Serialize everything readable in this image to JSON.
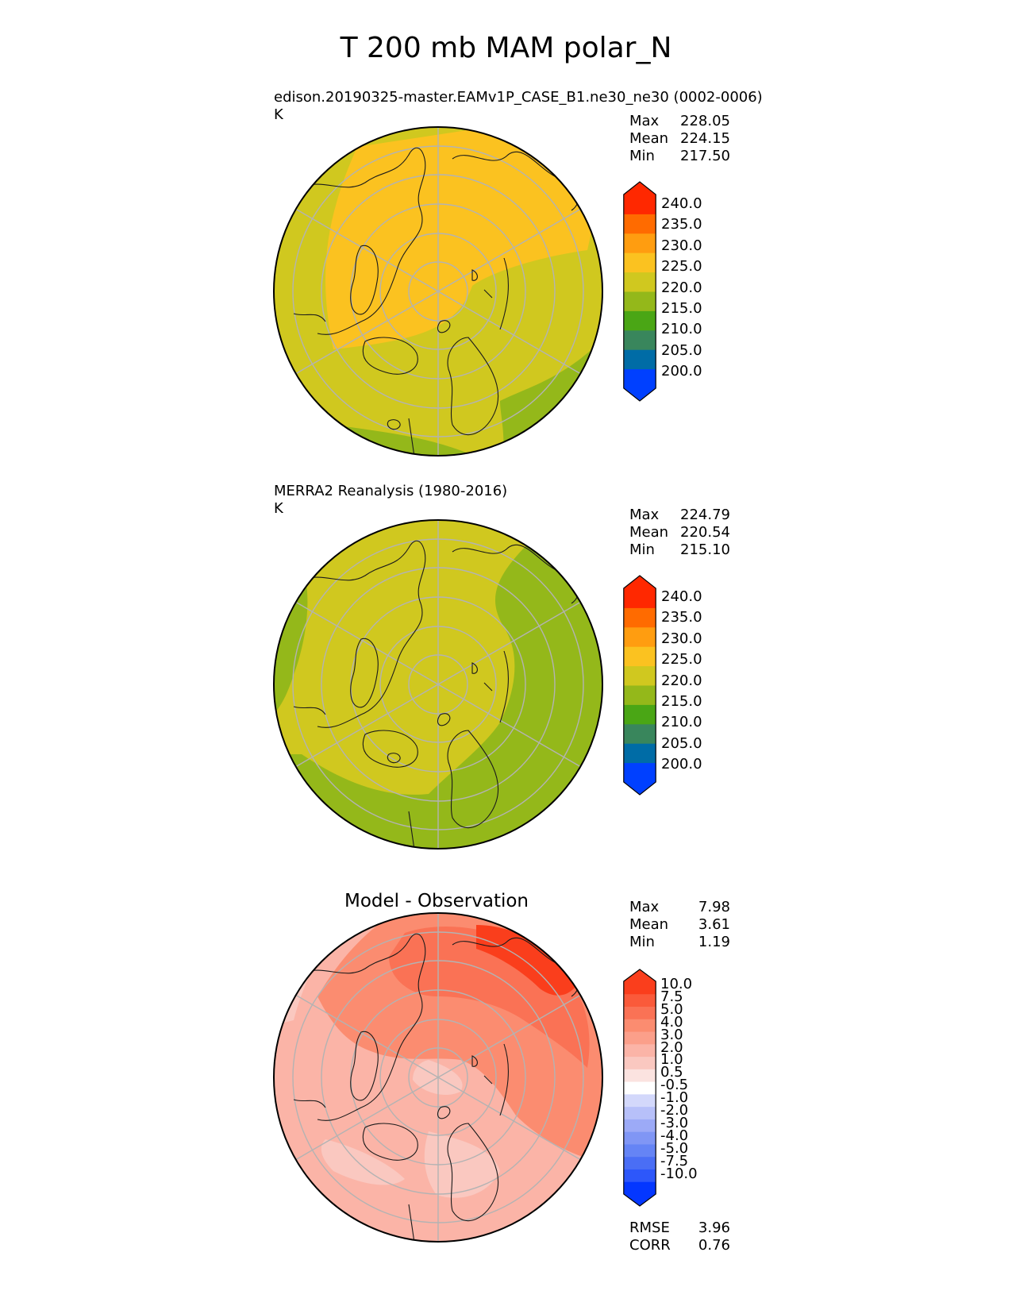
{
  "title": "T 200 mb MAM polar_N",
  "colors": {
    "abs_bins": [
      "#0040ff",
      "#006ca6",
      "#39865c",
      "#4aa615",
      "#94b81a",
      "#d0c81f",
      "#fbc220",
      "#ff9d10",
      "#ff6b00",
      "#ff2800"
    ],
    "diff_bins": [
      "#0437ff",
      "#2d57fa",
      "#4a6ef5",
      "#6584f5",
      "#8096f5",
      "#9caaf7",
      "#b7c0f9",
      "#d3d8fb",
      "#ffffff",
      "#fbe3e0",
      "#fac8c0",
      "#fbb4a7",
      "#fb9f8a",
      "#fb8c70",
      "#fa7255",
      "#fa5a3a",
      "#fa3e1c"
    ],
    "grid": "#b3b3b3",
    "coast": "#1a1a1a"
  },
  "panels": [
    {
      "id": "test",
      "title": "edison.20190325-master.EAMv1P_CASE_B1.ne30_ne30 (0002-0006)",
      "units": "K",
      "stats": [
        {
          "label": "Max",
          "value": "228.05"
        },
        {
          "label": "Mean",
          "value": "224.15"
        },
        {
          "label": "Min",
          "value": "217.50"
        }
      ],
      "colorbar_ticks": [
        "240.0",
        "235.0",
        "230.0",
        "225.0",
        "220.0",
        "215.0",
        "210.0",
        "205.0",
        "200.0"
      ]
    },
    {
      "id": "ref",
      "title": "MERRA2 Reanalysis (1980-2016)",
      "units": "K",
      "stats": [
        {
          "label": "Max",
          "value": "224.79"
        },
        {
          "label": "Mean",
          "value": "220.54"
        },
        {
          "label": "Min",
          "value": "215.10"
        }
      ],
      "colorbar_ticks": [
        "240.0",
        "235.0",
        "230.0",
        "225.0",
        "220.0",
        "215.0",
        "210.0",
        "205.0",
        "200.0"
      ]
    },
    {
      "id": "diff",
      "title": "Model - Observation",
      "stats": [
        {
          "label": "Max",
          "value": "7.98"
        },
        {
          "label": "Mean",
          "value": "3.61"
        },
        {
          "label": "Min",
          "value": "1.19"
        }
      ],
      "colorbar_ticks": [
        "10.0",
        "7.5",
        "5.0",
        "4.0",
        "3.0",
        "2.0",
        "1.0",
        "0.5",
        "-0.5",
        "-1.0",
        "-2.0",
        "-3.0",
        "-4.0",
        "-5.0",
        "-7.5",
        "-10.0"
      ],
      "metrics": [
        {
          "label": "RMSE",
          "value": "3.96"
        },
        {
          "label": "CORR",
          "value": "0.76"
        }
      ]
    }
  ]
}
